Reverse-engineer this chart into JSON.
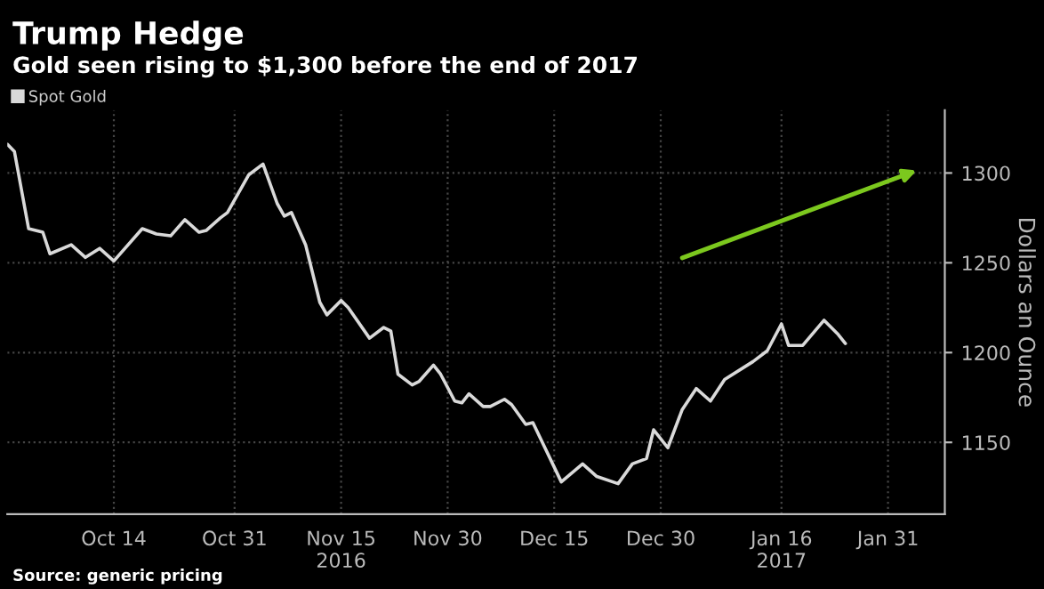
{
  "chart_data": {
    "type": "line",
    "title": "Trump Hedge",
    "subtitle": "Gold seen rising to $1,300 before the end of 2017",
    "ylabel": "Dollars an Ounce",
    "annotations": [
      "Source: generic pricing"
    ],
    "x": [
      "2016-09-29",
      "2016-09-30",
      "2016-10-02",
      "2016-10-04",
      "2016-10-05",
      "2016-10-08",
      "2016-10-10",
      "2016-10-12",
      "2016-10-14",
      "2016-10-18",
      "2016-10-20",
      "2016-10-22",
      "2016-10-24",
      "2016-10-26",
      "2016-10-27",
      "2016-10-29",
      "2016-10-30",
      "2016-11-02",
      "2016-11-04",
      "2016-11-06",
      "2016-11-07",
      "2016-11-08",
      "2016-11-10",
      "2016-11-12",
      "2016-11-13",
      "2016-11-15",
      "2016-11-16",
      "2016-11-19",
      "2016-11-21",
      "2016-11-22",
      "2016-11-23",
      "2016-11-25",
      "2016-11-26",
      "2016-11-28",
      "2016-11-29",
      "2016-12-01",
      "2016-12-02",
      "2016-12-03",
      "2016-12-05",
      "2016-12-06",
      "2016-12-08",
      "2016-12-09",
      "2016-12-11",
      "2016-12-12",
      "2016-12-16",
      "2016-12-19",
      "2016-12-21",
      "2016-12-24",
      "2016-12-26",
      "2016-12-28",
      "2016-12-29",
      "2016-12-31",
      "2017-01-02",
      "2017-01-04",
      "2017-01-06",
      "2017-01-08",
      "2017-01-12",
      "2017-01-14",
      "2017-01-16",
      "2017-01-17",
      "2017-01-19",
      "2017-01-22",
      "2017-01-24",
      "2017-01-25"
    ],
    "series": [
      {
        "name": "Spot Gold",
        "color": "#d9d9d9",
        "values": [
          1316,
          1312,
          1269,
          1267,
          1255,
          1260,
          1253,
          1258,
          1251,
          1269,
          1266,
          1265,
          1274,
          1267,
          1268,
          1275,
          1278,
          1299,
          1305,
          1283,
          1276,
          1278,
          1260,
          1228,
          1221,
          1229,
          1225,
          1208,
          1214,
          1212,
          1188,
          1182,
          1184,
          1193,
          1188,
          1173,
          1172,
          1177,
          1170,
          1170,
          1174,
          1171,
          1160,
          1161,
          1128,
          1138,
          1131,
          1127,
          1138,
          1141,
          1157,
          1147,
          1168,
          1180,
          1173,
          1185,
          1195,
          1201,
          1216,
          1204,
          1204,
          1218,
          1210,
          1205
        ]
      }
    ],
    "xlim": [
      "2016-09-29",
      "2017-02-08"
    ],
    "xticks": [
      {
        "value": "2016-10-14",
        "label": "Oct 14"
      },
      {
        "value": "2016-10-31",
        "label": "Oct 31"
      },
      {
        "value": "2016-11-15",
        "label": "Nov 15\n2016"
      },
      {
        "value": "2016-11-30",
        "label": "Nov 30"
      },
      {
        "value": "2016-12-15",
        "label": "Dec 15"
      },
      {
        "value": "2016-12-30",
        "label": "Dec 30"
      },
      {
        "value": "2017-01-16",
        "label": "Jan 16\n2017"
      },
      {
        "value": "2017-01-31",
        "label": "Jan 31"
      }
    ],
    "ylim": [
      1110,
      1335
    ],
    "yticks": [
      1150,
      1200,
      1250,
      1300
    ],
    "grid": true,
    "legend": "top left",
    "line_style": "solid",
    "marker": "none"
  }
}
